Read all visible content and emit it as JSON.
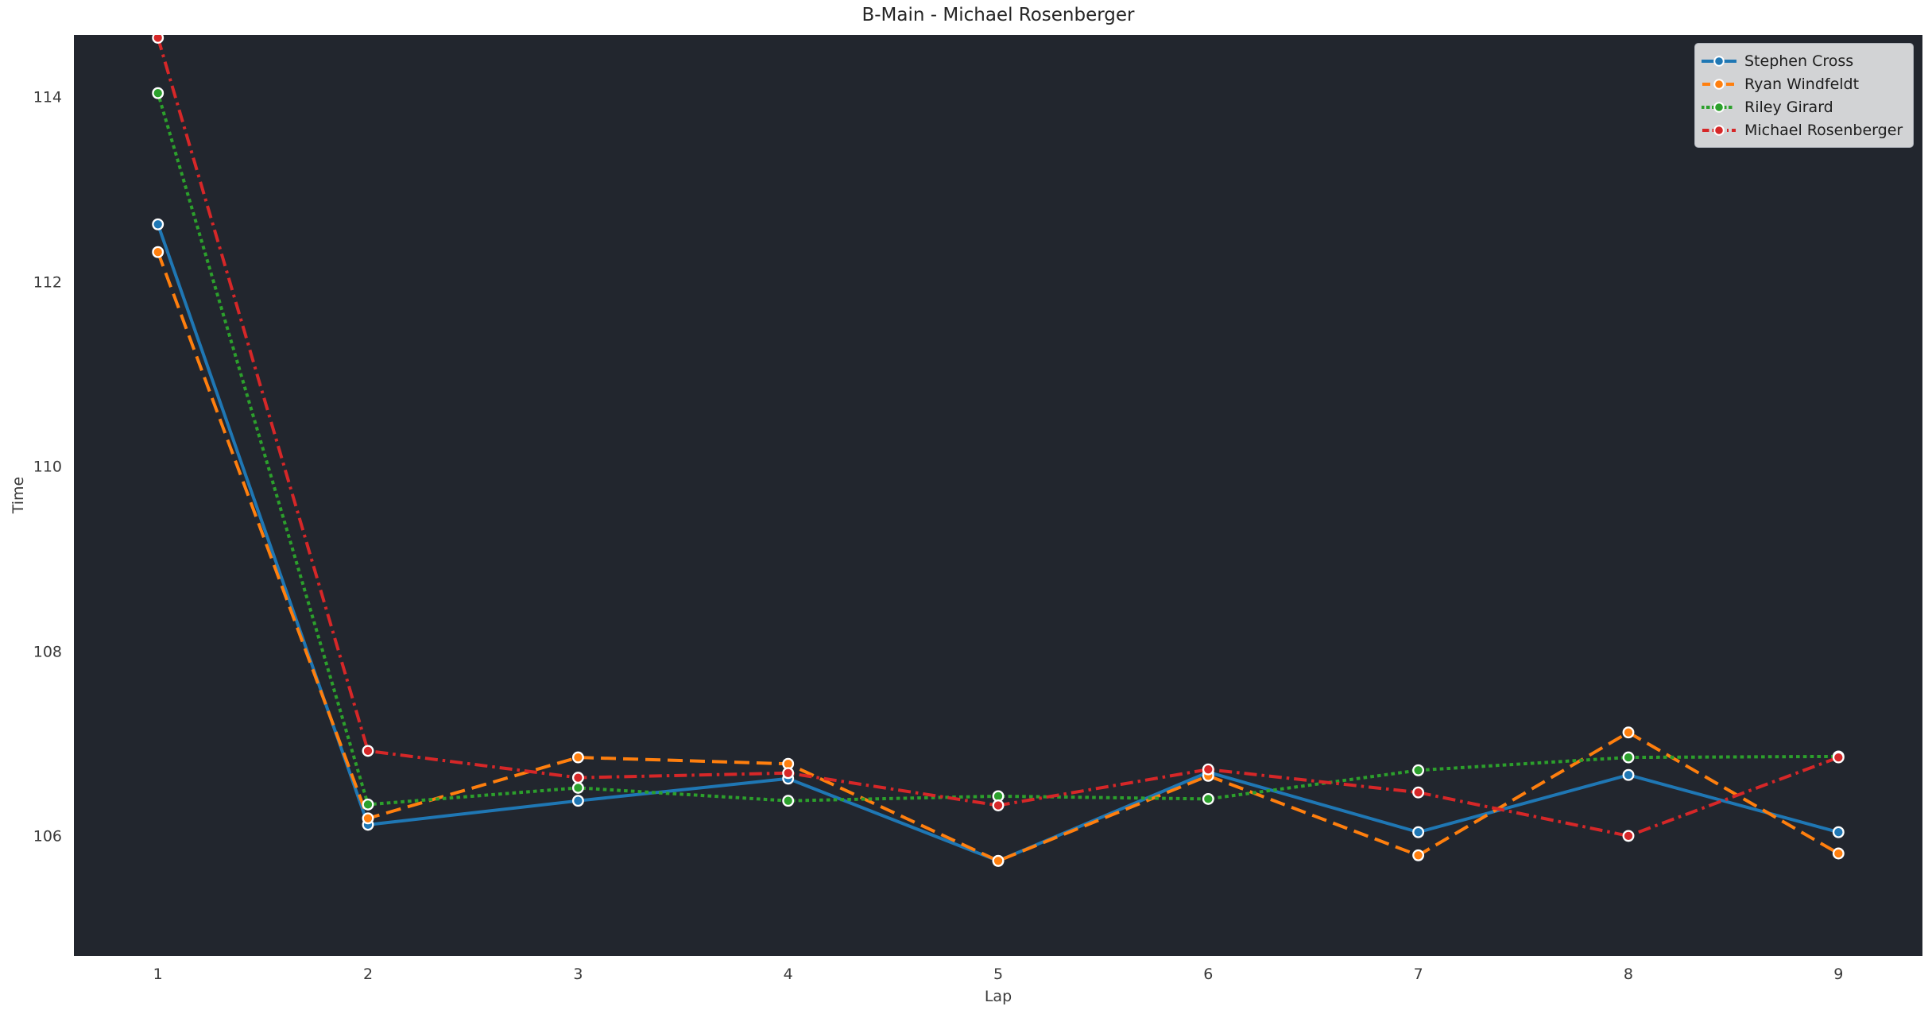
{
  "chart_data": {
    "type": "line",
    "title": "B-Main - Michael Rosenberger",
    "xlabel": "Lap",
    "ylabel": "Time",
    "x": [
      1,
      2,
      3,
      4,
      5,
      6,
      7,
      8,
      9
    ],
    "xticks": [
      "1",
      "2",
      "3",
      "4",
      "5",
      "6",
      "7",
      "8",
      "9"
    ],
    "yticks": [
      "106",
      "108",
      "110",
      "112",
      "114"
    ],
    "xlim": [
      0.6,
      9.4
    ],
    "ylim": [
      104.71,
      114.68
    ],
    "grid": false,
    "legend_position": "upper-right",
    "figure_bg": "#ffffff",
    "plot_bg": "#22262e",
    "marker": "circle",
    "marker_edge_color": "#ffffff",
    "series": [
      {
        "name": "Stephen Cross",
        "color": "#1f77b4",
        "linestyle": "solid",
        "values": [
          112.63,
          106.13,
          106.39,
          106.63,
          105.74,
          106.7,
          106.05,
          106.67,
          106.05
        ]
      },
      {
        "name": "Ryan Windfeldt",
        "color": "#ff7f0e",
        "linestyle": "dashed",
        "values": [
          112.33,
          106.2,
          106.86,
          106.79,
          105.74,
          106.66,
          105.8,
          107.13,
          105.82
        ]
      },
      {
        "name": "Riley Girard",
        "color": "#2ca02c",
        "linestyle": "dotted",
        "values": [
          114.05,
          106.35,
          106.53,
          106.39,
          106.44,
          106.41,
          106.72,
          106.86,
          106.87
        ]
      },
      {
        "name": "Michael Rosenberger",
        "color": "#d62728",
        "linestyle": "dashdot",
        "values": [
          114.65,
          106.93,
          106.64,
          106.69,
          106.34,
          106.73,
          106.48,
          106.01,
          106.86
        ]
      }
    ]
  }
}
